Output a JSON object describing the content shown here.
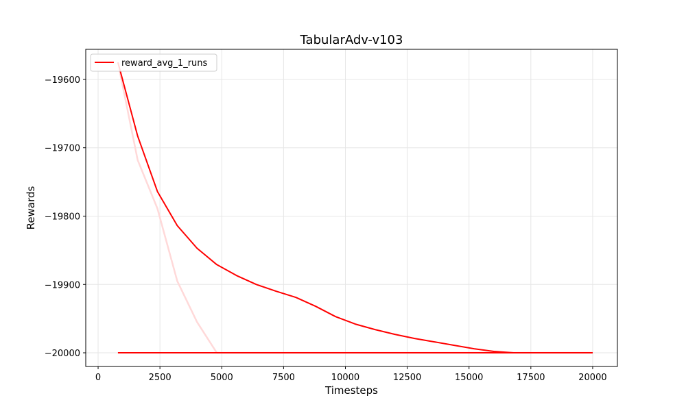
{
  "chart_data": {
    "type": "line",
    "title": "TabularAdv-v103",
    "xlabel": "Timesteps",
    "ylabel": "Rewards",
    "xlim": [
      -500,
      21000
    ],
    "ylim": [
      -20020,
      -19556
    ],
    "xticks": [
      0,
      2500,
      5000,
      7500,
      10000,
      12500,
      15000,
      17500,
      20000
    ],
    "yticks": [
      -19600,
      -19700,
      -19800,
      -19900,
      -20000
    ],
    "grid": true,
    "legend": "top-left",
    "colors": {
      "main": "#ff0000",
      "shadow": "#ffd9d9",
      "grid": "#e6e6e6"
    },
    "series": [
      {
        "name": "reward_avg_1_runs",
        "x": [
          800,
          1600,
          2400,
          3200,
          4000,
          4800,
          5600,
          6400,
          7200,
          8000,
          8800,
          9600,
          10400,
          11200,
          12000,
          12800,
          13600,
          14400,
          15200,
          16000,
          16800,
          17600,
          18400,
          19200,
          20000
        ],
        "y": [
          -19575,
          -19683,
          -19764,
          -19814,
          -19847,
          -19871,
          -19887,
          -19900,
          -19910,
          -19919,
          -19932,
          -19947,
          -19958,
          -19966,
          -19973,
          -19979,
          -19984,
          -19989,
          -19994,
          -19998,
          -20000,
          -20000,
          -20000,
          -20000,
          -20000
        ]
      },
      {
        "x": [
          800,
          1600,
          2400,
          3200,
          4000,
          4800,
          5600,
          6400,
          7200,
          8000,
          8800,
          9600,
          10400,
          11200,
          12000,
          12800,
          13600,
          14400,
          15200,
          16000,
          16800,
          17600,
          18400,
          19200,
          20000
        ],
        "y": [
          -19575,
          -19718,
          -19789,
          -19895,
          -19955,
          -20000,
          -20000,
          -20000,
          -20000,
          -20000,
          -20000,
          -20000,
          -20000,
          -20000,
          -20000,
          -20000,
          -20000,
          -20000,
          -20000,
          -20000,
          -20000,
          -20000,
          -20000,
          -20000,
          -20000
        ]
      },
      {
        "x": [
          800,
          20000
        ],
        "y": [
          -20000,
          -20000
        ]
      }
    ]
  }
}
